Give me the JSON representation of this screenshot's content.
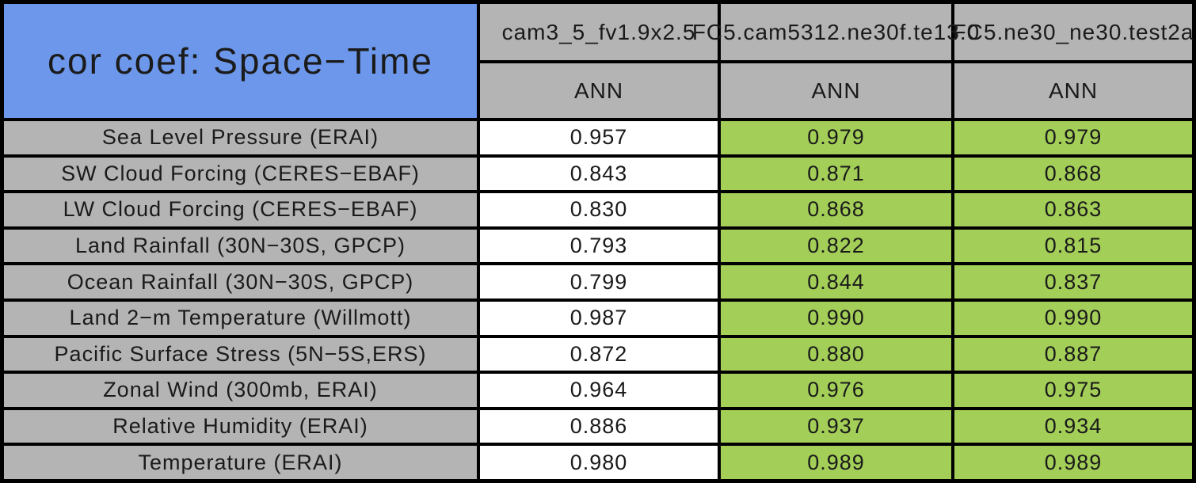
{
  "table": {
    "title": "cor coef: Space−Time",
    "model_columns": [
      "cam3_5_fv1.9x2.5",
      "FC5.cam5312.ne30f.te13.0",
      "FC5.ne30_ne30.test2a"
    ],
    "season_row": [
      "ANN",
      "ANN",
      "ANN"
    ],
    "rows": [
      {
        "label": "Sea Level Pressure (ERAI)",
        "values": [
          "0.957",
          "0.979",
          "0.979"
        ]
      },
      {
        "label": "SW Cloud Forcing (CERES−EBAF)",
        "values": [
          "0.843",
          "0.871",
          "0.868"
        ]
      },
      {
        "label": "LW Cloud Forcing (CERES−EBAF)",
        "values": [
          "0.830",
          "0.868",
          "0.863"
        ]
      },
      {
        "label": "Land Rainfall (30N−30S, GPCP)",
        "values": [
          "0.793",
          "0.822",
          "0.815"
        ]
      },
      {
        "label": "Ocean Rainfall (30N−30S, GPCP)",
        "values": [
          "0.799",
          "0.844",
          "0.837"
        ]
      },
      {
        "label": "Land 2−m Temperature (Willmott)",
        "values": [
          "0.987",
          "0.990",
          "0.990"
        ]
      },
      {
        "label": "Pacific Surface Stress (5N−5S,ERS)",
        "values": [
          "0.872",
          "0.880",
          "0.887"
        ]
      },
      {
        "label": "Zonal Wind (300mb, ERAI)",
        "values": [
          "0.964",
          "0.976",
          "0.975"
        ]
      },
      {
        "label": "Relative Humidity (ERAI)",
        "values": [
          "0.886",
          "0.937",
          "0.934"
        ]
      },
      {
        "label": "Temperature (ERAI)",
        "values": [
          "0.980",
          "0.989",
          "0.989"
        ]
      }
    ],
    "colors": {
      "title_blue": "#6c97ea",
      "header_gray": "#b4b4b4",
      "highlight_green": "#a3ce58",
      "base_white": "#ffffff",
      "border_black": "#000000"
    }
  },
  "chart_data": {
    "type": "table",
    "title": "cor coef: Space−Time",
    "columns": [
      "cam3_5_fv1.9x2.5",
      "FC5.cam5312.ne30f.te13.0",
      "FC5.ne30_ne30.test2a"
    ],
    "season": "ANN",
    "categories": [
      "Sea Level Pressure (ERAI)",
      "SW Cloud Forcing (CERES−EBAF)",
      "LW Cloud Forcing (CERES−EBAF)",
      "Land Rainfall (30N−30S, GPCP)",
      "Ocean Rainfall (30N−30S, GPCP)",
      "Land 2−m Temperature (Willmott)",
      "Pacific Surface Stress (5N−5S,ERS)",
      "Zonal Wind (300mb, ERAI)",
      "Relative Humidity (ERAI)",
      "Temperature (ERAI)"
    ],
    "series": [
      {
        "name": "cam3_5_fv1.9x2.5",
        "values": [
          0.957,
          0.843,
          0.83,
          0.793,
          0.799,
          0.987,
          0.872,
          0.964,
          0.886,
          0.98
        ]
      },
      {
        "name": "FC5.cam5312.ne30f.te13.0",
        "values": [
          0.979,
          0.871,
          0.868,
          0.822,
          0.844,
          0.99,
          0.88,
          0.976,
          0.937,
          0.989
        ]
      },
      {
        "name": "FC5.ne30_ne30.test2a",
        "values": [
          0.979,
          0.868,
          0.863,
          0.815,
          0.837,
          0.99,
          0.887,
          0.975,
          0.934,
          0.989
        ]
      }
    ]
  }
}
